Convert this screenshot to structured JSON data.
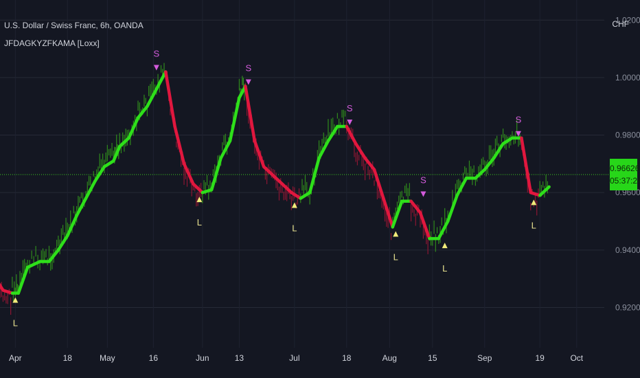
{
  "header": {
    "title": "U.S. Dollar / Swiss Franc, 6h, OANDA",
    "indicator": "JFDAGKYZFKAMA [Loxx]"
  },
  "price_scale": {
    "unit": "CHF",
    "ticks": [
      "1.02000",
      "1.00000",
      "0.98000",
      "0.96000",
      "0.94000",
      "0.92000"
    ],
    "last_price": "0.96626",
    "countdown": "05:37:24"
  },
  "colors": {
    "background": "#141722",
    "bull": "#2ee01a",
    "bear": "#e0173e",
    "bull_candle": "#2f8a1c",
    "bear_candle": "#8c1733",
    "short_marker": "#d35bdc",
    "long_marker": "#f2ec7a",
    "last_price_line": "#3ccc1e"
  },
  "chart_data": {
    "type": "line",
    "title": "U.S. Dollar / Swiss Franc, 6h, OANDA",
    "xlabel": "",
    "ylabel": "CHF",
    "ylim": [
      0.906,
      1.027
    ],
    "grid": true,
    "x_ticks": [
      "Apr",
      "18",
      "May",
      "16",
      "Jun",
      "13",
      "Jul",
      "18",
      "Aug",
      "15",
      "Sep",
      "19",
      "Oct"
    ],
    "x_tick_dates": [
      "2022-04-01",
      "2022-04-18",
      "2022-05-01",
      "2022-05-16",
      "2022-06-01",
      "2022-06-13",
      "2022-07-01",
      "2022-07-18",
      "2022-08-01",
      "2022-08-15",
      "2022-09-01",
      "2022-09-19",
      "2022-10-01"
    ],
    "series": [
      {
        "name": "JFDAGKYZFKAMA [Loxx]",
        "x": [
          "2022-03-25",
          "2022-03-28",
          "2022-03-31",
          "2022-04-02",
          "2022-04-05",
          "2022-04-09",
          "2022-04-12",
          "2022-04-15",
          "2022-04-18",
          "2022-04-21",
          "2022-04-24",
          "2022-04-27",
          "2022-04-30",
          "2022-05-03",
          "2022-05-05",
          "2022-05-08",
          "2022-05-11",
          "2022-05-14",
          "2022-05-17",
          "2022-05-20",
          "2022-05-23",
          "2022-05-26",
          "2022-05-29",
          "2022-06-01",
          "2022-06-04",
          "2022-06-07",
          "2022-06-10",
          "2022-06-13",
          "2022-06-15",
          "2022-06-18",
          "2022-06-21",
          "2022-06-24",
          "2022-06-27",
          "2022-06-30",
          "2022-07-03",
          "2022-07-06",
          "2022-07-09",
          "2022-07-12",
          "2022-07-15",
          "2022-07-18",
          "2022-07-21",
          "2022-07-24",
          "2022-07-27",
          "2022-07-30",
          "2022-08-02",
          "2022-08-05",
          "2022-08-08",
          "2022-08-11",
          "2022-08-14",
          "2022-08-17",
          "2022-08-20",
          "2022-08-23",
          "2022-08-26",
          "2022-08-29",
          "2022-09-01",
          "2022-09-04",
          "2022-09-07",
          "2022-09-10",
          "2022-09-13",
          "2022-09-16",
          "2022-09-19",
          "2022-09-22"
        ],
        "values": [
          0.931,
          0.926,
          0.925,
          0.925,
          0.934,
          0.936,
          0.936,
          0.94,
          0.945,
          0.952,
          0.958,
          0.964,
          0.969,
          0.971,
          0.976,
          0.979,
          0.986,
          0.99,
          0.996,
          1.002,
          0.983,
          0.97,
          0.963,
          0.96,
          0.961,
          0.972,
          0.978,
          0.993,
          0.997,
          0.978,
          0.969,
          0.966,
          0.963,
          0.96,
          0.958,
          0.96,
          0.972,
          0.978,
          0.983,
          0.983,
          0.977,
          0.972,
          0.968,
          0.958,
          0.948,
          0.957,
          0.957,
          0.953,
          0.944,
          0.944,
          0.95,
          0.959,
          0.965,
          0.965,
          0.968,
          0.972,
          0.977,
          0.979,
          0.979,
          0.96,
          0.959,
          0.962
        ]
      }
    ],
    "signals": [
      {
        "type": "L",
        "x": "2022-04-01",
        "price": 0.925
      },
      {
        "type": "S",
        "x": "2022-05-17",
        "price": 1.002
      },
      {
        "type": "L",
        "x": "2022-05-31",
        "price": 0.96
      },
      {
        "type": "S",
        "x": "2022-06-16",
        "price": 0.997
      },
      {
        "type": "L",
        "x": "2022-07-01",
        "price": 0.958
      },
      {
        "type": "S",
        "x": "2022-07-19",
        "price": 0.983
      },
      {
        "type": "L",
        "x": "2022-08-03",
        "price": 0.948
      },
      {
        "type": "S",
        "x": "2022-08-12",
        "price": 0.958
      },
      {
        "type": "L",
        "x": "2022-08-19",
        "price": 0.944
      },
      {
        "type": "S",
        "x": "2022-09-12",
        "price": 0.979
      },
      {
        "type": "L",
        "x": "2022-09-17",
        "price": 0.959
      }
    ]
  }
}
